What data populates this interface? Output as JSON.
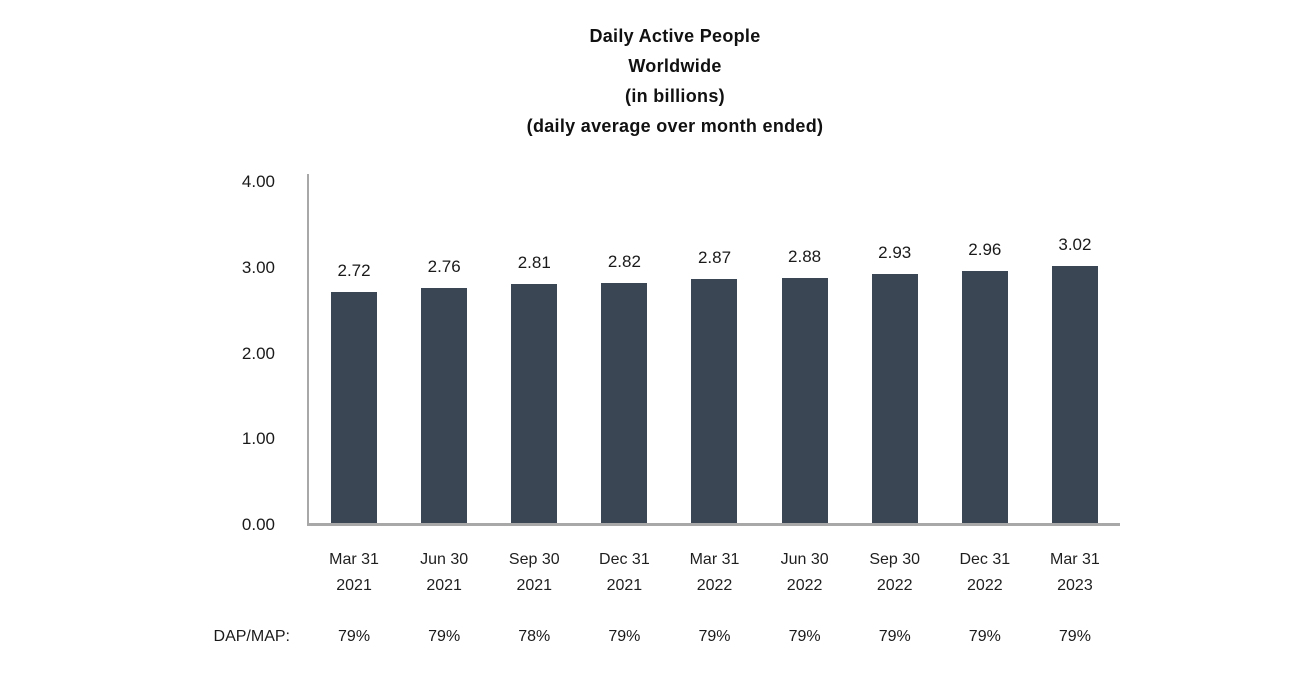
{
  "chart_data": {
    "type": "bar",
    "title_lines": [
      "Daily Active People",
      "Worldwide",
      "(in billions)",
      "(daily average over month ended)"
    ],
    "categories": [
      {
        "month": "Mar 31",
        "year": "2021"
      },
      {
        "month": "Jun 30",
        "year": "2021"
      },
      {
        "month": "Sep 30",
        "year": "2021"
      },
      {
        "month": "Dec 31",
        "year": "2021"
      },
      {
        "month": "Mar 31",
        "year": "2022"
      },
      {
        "month": "Jun 30",
        "year": "2022"
      },
      {
        "month": "Sep 30",
        "year": "2022"
      },
      {
        "month": "Dec 31",
        "year": "2022"
      },
      {
        "month": "Mar 31",
        "year": "2023"
      }
    ],
    "values": [
      2.72,
      2.76,
      2.81,
      2.82,
      2.87,
      2.88,
      2.93,
      2.96,
      3.02
    ],
    "value_labels": [
      "2.72",
      "2.76",
      "2.81",
      "2.82",
      "2.87",
      "2.88",
      "2.93",
      "2.96",
      "3.02"
    ],
    "xlabel": "",
    "ylabel": "",
    "ylim": [
      0,
      4
    ],
    "y_ticks": [
      "4.00",
      "3.00",
      "2.00",
      "1.00",
      "0.00"
    ],
    "grid": false,
    "legend": "none",
    "bar_color": "#3a4653",
    "axis_color": "#a8a8a8",
    "text_color": "#1a1a1a",
    "dap_map_row": {
      "label": "DAP/MAP:",
      "values": [
        "79%",
        "79%",
        "78%",
        "79%",
        "79%",
        "79%",
        "79%",
        "79%",
        "79%"
      ]
    }
  }
}
